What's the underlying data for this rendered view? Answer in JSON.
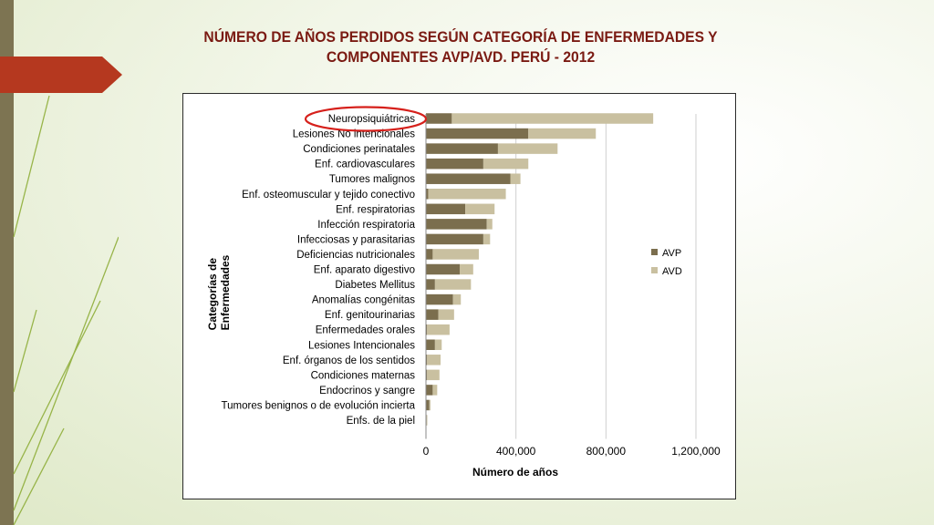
{
  "slide": {
    "title_line1": "NÚMERO DE AÑOS PERDIDOS SEGÚN CATEGORÍA DE ENFERMEDADES Y",
    "title_line2": "COMPONENTES AVP/AVD. PERÚ - 2012"
  },
  "colors": {
    "accent": "#b5381f",
    "strip": "#7d7452",
    "avp": "#7b6e4e",
    "avd": "#c9c0a0",
    "highlight_ring": "#d6201b"
  },
  "chart_data": {
    "type": "bar",
    "orientation": "horizontal",
    "stacked": true,
    "xlabel": "Número de años",
    "ylabel_line1": "Categorías de",
    "ylabel_line2": "Enfermedades",
    "xlim": [
      0,
      1200000
    ],
    "xticks": [
      0,
      400000,
      800000,
      1200000
    ],
    "xtick_labels": [
      "0",
      "400,000",
      "800,000",
      "1,200,000"
    ],
    "gridlines": true,
    "legend_position": "right",
    "highlighted_category": "Neuropsiquiátricas",
    "categories": [
      "Neuropsiquiátricas",
      "Lesiones No intencionales",
      "Condiciones perinatales",
      "Enf. cardiovasculares",
      "Tumores malignos",
      "Enf. osteomuscular y tejido conectivo",
      "Enf. respiratorias",
      "Infección respiratoria",
      "Infecciosas y parasitarias",
      "Deficiencias nutricionales",
      "Enf. aparato digestivo",
      "Diabetes Mellitus",
      "Anomalías congénitas",
      "Enf. genitourinarias",
      "Enfermedades orales",
      "Lesiones Intencionales",
      "Enf. órganos de los sentidos",
      "Condiciones maternas",
      "Endocrinos y sangre",
      "Tumores benignos o de evolución incierta",
      "Enfs. de la piel"
    ],
    "series": [
      {
        "name": "AVP",
        "values": [
          115000,
          455000,
          320000,
          255000,
          375000,
          10000,
          175000,
          270000,
          255000,
          30000,
          150000,
          40000,
          120000,
          55000,
          5000,
          40000,
          5000,
          5000,
          30000,
          15000,
          3000
        ]
      },
      {
        "name": "AVD",
        "values": [
          895000,
          300000,
          265000,
          200000,
          45000,
          345000,
          130000,
          25000,
          30000,
          205000,
          60000,
          160000,
          35000,
          70000,
          100000,
          30000,
          60000,
          55000,
          20000,
          5000,
          3000
        ]
      }
    ]
  }
}
